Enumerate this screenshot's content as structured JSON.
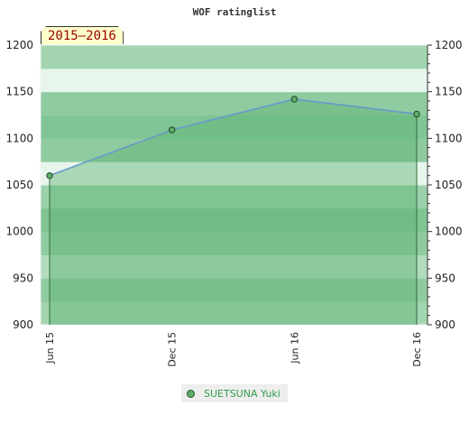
{
  "chart_data": {
    "type": "line",
    "title": "WOF ratinglist",
    "period": "2015–2016",
    "x": [
      "Jun 15",
      "Dec 15",
      "Jun 16",
      "Dec 16"
    ],
    "series": [
      {
        "name": "SUETSUNA Yuki",
        "values": [
          1060,
          1109,
          1142,
          1126
        ]
      }
    ],
    "ylim": [
      900,
      1200
    ],
    "yticks": [
      900,
      950,
      1000,
      1050,
      1100,
      1150,
      1200
    ],
    "y_axis_both_sides": true,
    "legend_position": "bottom-center",
    "colors": {
      "line": "#6699cc",
      "fill": "#5fb473",
      "marker": "#5fae6c",
      "title_badge": "#ffffcc"
    }
  }
}
